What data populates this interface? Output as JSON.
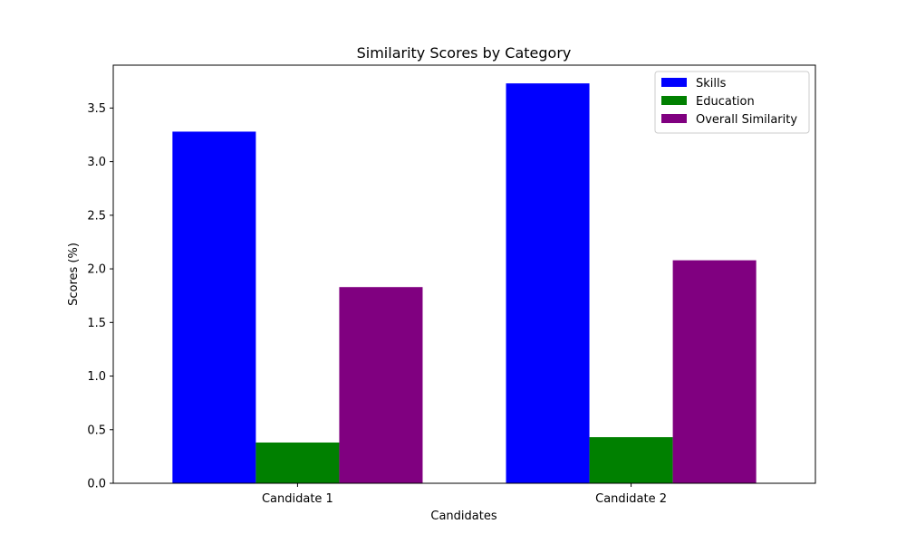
{
  "chart_data": {
    "type": "bar",
    "title": "Similarity Scores by Category",
    "xlabel": "Candidates",
    "ylabel": "Scores (%)",
    "categories": [
      "Candidate 1",
      "Candidate 2"
    ],
    "series": [
      {
        "name": "Skills",
        "color": "#0000ff",
        "values": [
          3.28,
          3.73
        ]
      },
      {
        "name": "Education",
        "color": "#008000",
        "values": [
          0.38,
          0.43
        ]
      },
      {
        "name": "Overall Similarity",
        "color": "#800080",
        "values": [
          1.83,
          2.08
        ]
      }
    ],
    "ylim": [
      0,
      3.9
    ],
    "yticks": [
      "0.0",
      "0.5",
      "1.0",
      "1.5",
      "2.0",
      "2.5",
      "3.0",
      "3.5"
    ],
    "legend_position": "top-right",
    "grid": false
  }
}
